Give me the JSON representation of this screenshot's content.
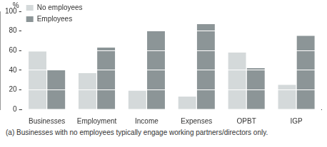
{
  "chart_data": {
    "type": "bar",
    "y_label": "%",
    "categories": [
      "Businesses",
      "Employment",
      "Income",
      "Expenses",
      "OPBT",
      "IGP"
    ],
    "series": [
      {
        "name": "No employees",
        "color": "#d4d9da",
        "values": [
          59,
          37,
          19,
          13,
          58,
          25
        ]
      },
      {
        "name": "Employees",
        "color": "#8c9597",
        "values": [
          40,
          63,
          80,
          87,
          42,
          75
        ]
      }
    ],
    "ylim": [
      0,
      100
    ],
    "yticks": [
      0,
      20,
      40,
      60,
      80,
      100
    ],
    "grid": true,
    "legend": "upper left",
    "annotations": [
      "(a) Businesses with no employees typically engage working partners/directors only."
    ]
  }
}
